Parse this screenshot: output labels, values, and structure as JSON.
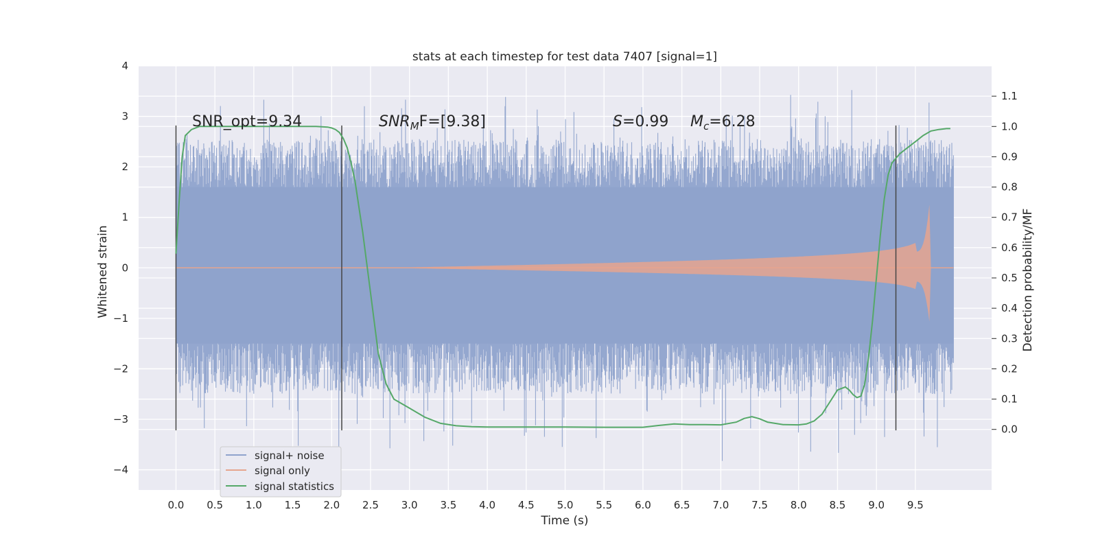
{
  "chart_data": {
    "type": "line",
    "title": "stats at each timestep for test data 7407 [signal=1]",
    "xlabel": "Time (s)",
    "ylabel_left": "Whitened strain",
    "ylabel_right": "Detection probability/MF",
    "xlim": [
      -0.48,
      10.48
    ],
    "ylim_left": [
      -4.4,
      4.0
    ],
    "ylim_right": [
      -0.2,
      1.2
    ],
    "x_ticks": [
      "0.0",
      "0.5",
      "1.0",
      "1.5",
      "2.0",
      "2.5",
      "3.0",
      "3.5",
      "4.0",
      "4.5",
      "5.0",
      "5.5",
      "6.0",
      "6.5",
      "7.0",
      "7.5",
      "8.0",
      "8.5",
      "9.0",
      "9.5"
    ],
    "y_left_ticks": [
      "4",
      "3",
      "2",
      "1",
      "0",
      "−1",
      "−2",
      "−3",
      "−4"
    ],
    "y_right_ticks": [
      "1.1",
      "1.0",
      "0.9",
      "0.8",
      "0.7",
      "0.6",
      "0.5",
      "0.4",
      "0.3",
      "0.2",
      "0.1",
      "0.0"
    ],
    "grid": true,
    "annotations": {
      "snr_opt": "SNR_opt=9.34",
      "snr_mf_main": "SNR",
      "snr_mf_sub": "M",
      "snr_mf_tail": "F=[9.38]",
      "s_main": "S",
      "s_tail": "=0.99",
      "mc_main": "M",
      "mc_sub": "c",
      "mc_tail": "=6.28"
    },
    "vertical_markers_x": [
      0.0,
      2.13,
      9.25
    ],
    "legend": {
      "placement": "lower-left",
      "entries": [
        "signal+ noise",
        "signal only",
        "signal statistics"
      ]
    },
    "series": [
      {
        "name": "signal+ noise",
        "color": "#8fa3cc",
        "description_values": "noise strain, roughly within ±2.5 with spikes to ±3.6",
        "x_range": [
          0.0,
          9.99
        ],
        "amp_range": [
          -4.05,
          3.65
        ]
      },
      {
        "name": "signal only",
        "color": "#e6a58e",
        "chirp_end_x": 9.68,
        "peak_amplitude": 1.25
      },
      {
        "name": "signal statistics",
        "color": "#55a868",
        "x": [
          0.0,
          0.04,
          0.08,
          0.12,
          0.2,
          0.3,
          0.5,
          0.8,
          1.0,
          1.4,
          1.8,
          1.95,
          2.0,
          2.05,
          2.1,
          2.15,
          2.2,
          2.25,
          2.3,
          2.4,
          2.5,
          2.6,
          2.7,
          2.8,
          3.0,
          3.2,
          3.4,
          3.6,
          3.8,
          4.0,
          4.5,
          5.0,
          5.5,
          6.0,
          6.2,
          6.4,
          6.6,
          6.8,
          7.0,
          7.2,
          7.3,
          7.4,
          7.5,
          7.6,
          7.8,
          8.0,
          8.1,
          8.2,
          8.3,
          8.4,
          8.5,
          8.6,
          8.65,
          8.7,
          8.75,
          8.8,
          8.85,
          8.9,
          8.95,
          9.0,
          9.05,
          9.1,
          9.15,
          9.2,
          9.3,
          9.4,
          9.5,
          9.6,
          9.7,
          9.8,
          9.9,
          9.95
        ],
        "y": [
          0.58,
          0.75,
          0.9,
          0.97,
          0.99,
          1.0,
          1.0,
          1.0,
          1.0,
          1.0,
          1.0,
          0.998,
          0.995,
          0.99,
          0.98,
          0.96,
          0.93,
          0.88,
          0.82,
          0.65,
          0.45,
          0.25,
          0.15,
          0.1,
          0.07,
          0.04,
          0.02,
          0.012,
          0.009,
          0.008,
          0.008,
          0.008,
          0.007,
          0.007,
          0.013,
          0.018,
          0.016,
          0.016,
          0.015,
          0.024,
          0.036,
          0.042,
          0.035,
          0.024,
          0.016,
          0.015,
          0.018,
          0.028,
          0.05,
          0.09,
          0.13,
          0.14,
          0.13,
          0.115,
          0.105,
          0.11,
          0.15,
          0.24,
          0.36,
          0.5,
          0.64,
          0.76,
          0.84,
          0.88,
          0.91,
          0.93,
          0.95,
          0.97,
          0.985,
          0.99,
          0.993,
          0.993
        ]
      }
    ]
  }
}
